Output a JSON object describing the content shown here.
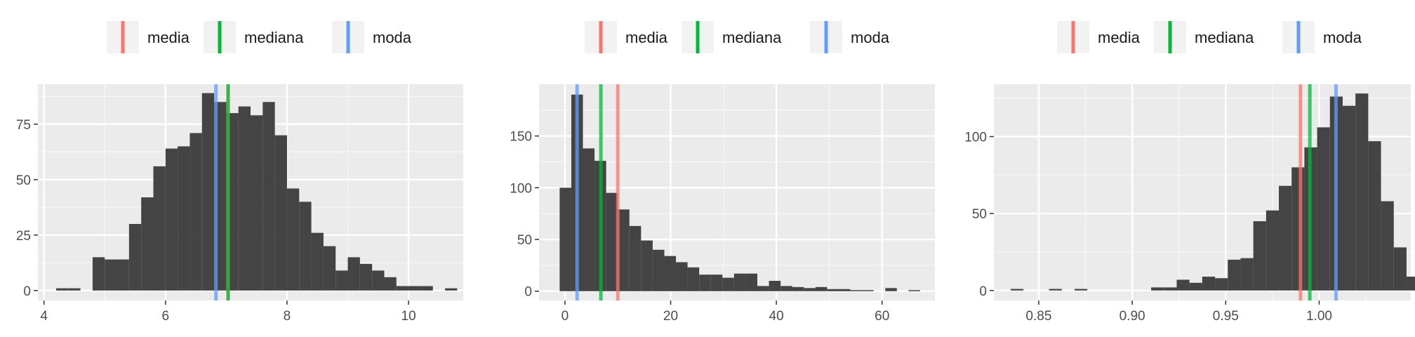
{
  "chart_data": [
    {
      "type": "bar",
      "legend": {
        "position": "top",
        "entries": [
          {
            "label": "media",
            "color": "#F8766D"
          },
          {
            "label": "mediana",
            "color": "#00BA38"
          },
          {
            "label": "moda",
            "color": "#619CFF"
          }
        ]
      },
      "x_ticks": [
        "4",
        "6",
        "8",
        "10"
      ],
      "x_tick_values": [
        4,
        6,
        8,
        10
      ],
      "y_ticks": [
        "0",
        "25",
        "50",
        "75"
      ],
      "y_tick_values": [
        0,
        25,
        50,
        75
      ],
      "xlim": [
        3.9,
        10.9
      ],
      "ylim": [
        -4.5,
        93
      ],
      "bin_start": 4.2,
      "bin_width": 0.2,
      "counts": [
        1,
        1,
        0,
        15,
        14,
        14,
        30,
        42,
        56,
        64,
        65,
        71,
        89,
        85,
        80,
        83,
        79,
        85,
        70,
        46,
        40,
        26,
        20,
        9,
        15,
        12,
        9,
        6,
        2,
        2,
        2,
        0,
        1
      ],
      "lines": {
        "media": 7.03,
        "mediana": 7.03,
        "moda": 6.83
      },
      "grid": true
    },
    {
      "type": "bar",
      "legend": {
        "position": "top",
        "entries": [
          {
            "label": "media",
            "color": "#F8766D"
          },
          {
            "label": "mediana",
            "color": "#00BA38"
          },
          {
            "label": "moda",
            "color": "#619CFF"
          }
        ]
      },
      "x_ticks": [
        "0",
        "20",
        "40",
        "60"
      ],
      "x_tick_values": [
        0,
        20,
        40,
        60
      ],
      "y_ticks": [
        "0",
        "50",
        "100",
        "150"
      ],
      "y_tick_values": [
        0,
        50,
        100,
        150
      ],
      "xlim": [
        -4.9,
        70
      ],
      "ylim": [
        -9,
        200
      ],
      "bin_start": -1,
      "bin_width": 2.2,
      "counts": [
        100,
        190,
        138,
        126,
        95,
        79,
        63,
        49,
        40,
        34,
        28,
        23,
        16,
        16,
        13,
        17,
        17,
        5,
        10,
        5,
        4,
        3,
        4,
        2,
        2,
        1,
        1,
        0,
        3,
        0,
        1
      ],
      "lines": {
        "media": 10.0,
        "mediana": 6.8,
        "moda": 2.3
      },
      "grid": true
    },
    {
      "type": "bar",
      "legend": {
        "position": "top",
        "entries": [
          {
            "label": "media",
            "color": "#F8766D"
          },
          {
            "label": "mediana",
            "color": "#00BA38"
          },
          {
            "label": "moda",
            "color": "#619CFF"
          }
        ]
      },
      "x_ticks": [
        "0.85",
        "0.90",
        "0.95",
        "1.00"
      ],
      "x_tick_values": [
        0.85,
        0.9,
        0.95,
        1.0
      ],
      "y_ticks": [
        "0",
        "50",
        "100"
      ],
      "y_tick_values": [
        0,
        50,
        100
      ],
      "xlim": [
        0.826,
        1.049
      ],
      "ylim": [
        -6.5,
        134
      ],
      "bin_start": 0.835,
      "bin_width": 0.00683,
      "counts": [
        1,
        0,
        0,
        1,
        0,
        1,
        0,
        0,
        0,
        0,
        0,
        2,
        2,
        7,
        5,
        9,
        8,
        20,
        21,
        45,
        52,
        68,
        80,
        93,
        106,
        126,
        120,
        128,
        97,
        58,
        28,
        9
      ],
      "lines": {
        "media": 0.99,
        "mediana": 0.995,
        "moda": 1.009
      },
      "grid": true
    }
  ]
}
